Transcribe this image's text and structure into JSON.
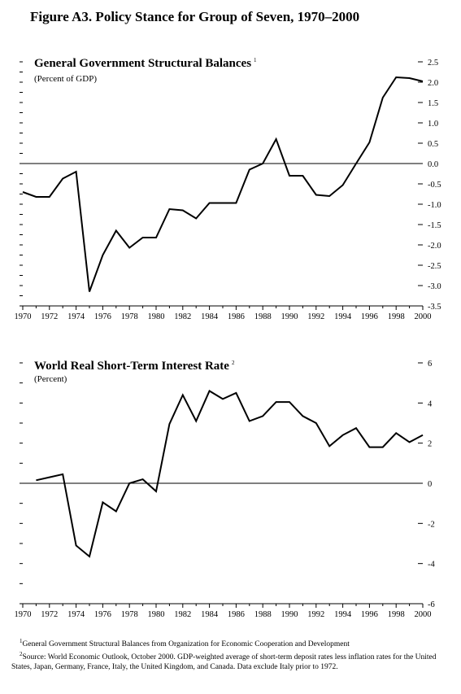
{
  "figure_title": "Figure A3. Policy Stance for Group of Seven, 1970–2000",
  "footnotes": {
    "note1_mark": "1",
    "note1": "General Government Structural Balances from Organization for Economic Cooperation and Development",
    "note2_mark": "2",
    "note2": "Source: World Economic Outlook, October 2000.  GDP-weighted average of short-term deposit rates less inflation rates for the United States, Japan, Germany, France, Italy, the United Kingdom, and Canada.  Data exclude Italy prior to 1972."
  },
  "chart_data": [
    {
      "type": "line",
      "title": "General Government Structural Balances",
      "title_note": "1",
      "subtitle": "(Percent of GDP)",
      "xlim": [
        1970,
        2000
      ],
      "ylim": [
        -3.5,
        2.5
      ],
      "x_ticks": [
        1970,
        1972,
        1974,
        1976,
        1978,
        1980,
        1982,
        1984,
        1986,
        1988,
        1990,
        1992,
        1994,
        1996,
        1998,
        2000
      ],
      "y_ticks": [
        2.5,
        2.0,
        1.5,
        1.0,
        0.5,
        0.0,
        -0.5,
        -1.0,
        -1.5,
        -2.0,
        -2.5,
        -3.0,
        -3.5
      ],
      "y_tick_labels": [
        "2.5",
        "2.0",
        "1.5",
        "1.0",
        "0.5",
        "0.0",
        "-0.5",
        "-1.0",
        "-1.5",
        "-2.0",
        "-2.5",
        "-3.0",
        "-3.5"
      ],
      "zero_line": true,
      "series": [
        {
          "x": [
            1970,
            1971,
            1972,
            1973,
            1974,
            1975,
            1976,
            1977,
            1978,
            1979,
            1980,
            1981,
            1982,
            1983,
            1984,
            1985,
            1986,
            1987,
            1988,
            1989,
            1990,
            1991,
            1992,
            1993,
            1994,
            1995,
            1996,
            1997,
            1998,
            1999,
            2000
          ],
          "values": [
            -0.7,
            -0.82,
            -0.82,
            -0.37,
            -0.2,
            -3.15,
            -2.25,
            -1.65,
            -2.07,
            -1.82,
            -1.82,
            -1.12,
            -1.15,
            -1.35,
            -0.97,
            -0.97,
            -0.97,
            -0.15,
            0.0,
            0.6,
            -0.3,
            -0.3,
            -0.77,
            -0.8,
            -0.53,
            0.0,
            0.52,
            1.62,
            2.12,
            2.1,
            2.02
          ]
        }
      ]
    },
    {
      "type": "line",
      "title": "World Real Short-Term Interest Rate",
      "title_note": "2",
      "subtitle": "(Percent)",
      "xlim": [
        1970,
        2000
      ],
      "ylim": [
        -6,
        6
      ],
      "x_ticks": [
        1970,
        1972,
        1974,
        1976,
        1978,
        1980,
        1982,
        1984,
        1986,
        1988,
        1990,
        1992,
        1994,
        1996,
        1998,
        2000
      ],
      "y_ticks": [
        6,
        4,
        2,
        0,
        -2,
        -4,
        -6
      ],
      "y_tick_labels": [
        "6",
        "4",
        "2",
        "0",
        "-2",
        "-4",
        "-6"
      ],
      "zero_line": true,
      "series": [
        {
          "x": [
            1971,
            1972,
            1973,
            1974,
            1975,
            1976,
            1977,
            1978,
            1979,
            1980,
            1981,
            1982,
            1983,
            1984,
            1985,
            1986,
            1987,
            1988,
            1989,
            1990,
            1991,
            1992,
            1993,
            1994,
            1995,
            1996,
            1997,
            1998,
            1999,
            2000
          ],
          "values": [
            0.15,
            0.3,
            0.45,
            -3.1,
            -3.65,
            -0.95,
            -1.4,
            0.0,
            0.2,
            -0.4,
            2.95,
            4.4,
            3.1,
            4.6,
            4.2,
            4.5,
            3.1,
            3.35,
            4.05,
            4.05,
            3.35,
            3.0,
            1.85,
            2.4,
            2.75,
            1.8,
            1.8,
            2.5,
            2.05,
            2.4
          ]
        }
      ]
    }
  ]
}
